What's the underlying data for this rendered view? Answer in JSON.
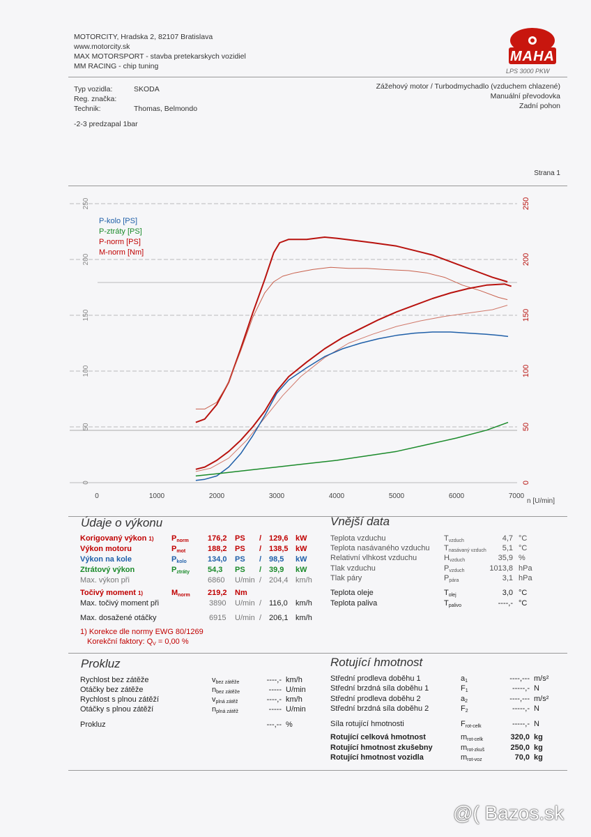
{
  "header": {
    "line1": "MOTORCITY, Hradska 2, 82107 Bratislava",
    "line2": "www.motorcity.sk",
    "line3": "MAX MOTORSPORT - stavba pretekarskych vozidiel",
    "line4": "MM RACING - chip tuning",
    "logo": "MAHA",
    "model": "LPS 3000 PKW"
  },
  "vehicle": {
    "type_label": "Typ vozidla:",
    "type_value": "SKODA",
    "reg_label": "Reg. značka:",
    "tech_label": "Technik:",
    "tech_value": "Thomas, Belmondo",
    "note": "-2-3 predzapal 1bar",
    "engine": "Zážehový motor / Turbodmychadlo (vzduchem chlazené)",
    "gearbox": "Manuální převodovka",
    "drive": "Zadní pohon"
  },
  "page_label": "Strana 1",
  "chart_data": {
    "type": "line",
    "x_label": "n [U/min]",
    "x_ticks": [
      "0",
      "1000",
      "2000",
      "3000",
      "4000",
      "5000",
      "6000",
      "7000"
    ],
    "left_ticks": [
      "0",
      "50",
      "100",
      "150",
      "200",
      "250"
    ],
    "right_ticks": [
      "0",
      "50",
      "100",
      "150",
      "200",
      "250"
    ],
    "xlim": [
      0,
      7000
    ],
    "ylim_left": [
      0,
      250
    ],
    "ylim_right": [
      0,
      250
    ],
    "legend": [
      {
        "name": "P-kolo [PS]",
        "color": "#1f5fa8"
      },
      {
        "name": "P-ztráty [PS]",
        "color": "#1a8a2a"
      },
      {
        "name": "P-norm [PS]",
        "color": "#c00000"
      },
      {
        "name": "M-norm [Nm]",
        "color": "#c00000"
      }
    ],
    "series": [
      {
        "name": "M-norm [Nm]",
        "color": "#b8120e",
        "width": 2,
        "x": [
          1650,
          1800,
          2000,
          2200,
          2400,
          2600,
          2800,
          2950,
          3050,
          3200,
          3500,
          3800,
          4000,
          4300,
          4600,
          5000,
          5300,
          5600,
          6000,
          6300,
          6600,
          6850
        ],
        "y": [
          54,
          57,
          70,
          90,
          120,
          152,
          182,
          206,
          215,
          218,
          218,
          220,
          219,
          217,
          215,
          212,
          208,
          204,
          196,
          190,
          184,
          180
        ]
      },
      {
        "name": "M-norm run 2",
        "color": "#c8604c",
        "width": 1,
        "x": [
          1650,
          1800,
          2000,
          2200,
          2400,
          2600,
          2800,
          2950,
          3100,
          3300,
          3600,
          3900,
          4200,
          4500,
          4800,
          5200,
          5500,
          5800,
          6100,
          6400,
          6700,
          6850
        ],
        "y": [
          66,
          66,
          72,
          90,
          118,
          148,
          170,
          180,
          185,
          188,
          191,
          193,
          192,
          192,
          191,
          190,
          188,
          184,
          177,
          172,
          166,
          164
        ]
      },
      {
        "name": "P-norm [PS]",
        "color": "#b8120e",
        "width": 2,
        "x": [
          1650,
          1800,
          2000,
          2200,
          2400,
          2600,
          2800,
          3000,
          3200,
          3500,
          3800,
          4100,
          4400,
          4700,
          5000,
          5300,
          5600,
          5900,
          6200,
          6500,
          6800,
          6915
        ],
        "y": [
          12,
          14,
          20,
          28,
          38,
          50,
          64,
          82,
          95,
          108,
          120,
          130,
          138,
          146,
          153,
          159,
          165,
          170,
          174,
          177,
          178,
          176
        ]
      },
      {
        "name": "P-norm run 2",
        "color": "#d0786a",
        "width": 1,
        "x": [
          1650,
          1900,
          2200,
          2500,
          2800,
          3100,
          3400,
          3800,
          4200,
          4600,
          5000,
          5400,
          5800,
          6200,
          6600,
          6850
        ],
        "y": [
          10,
          13,
          22,
          38,
          58,
          78,
          95,
          112,
          125,
          133,
          140,
          145,
          149,
          152,
          155,
          159
        ]
      },
      {
        "name": "P-kolo [PS]",
        "color": "#1f5fa8",
        "width": 1.5,
        "x": [
          1650,
          1800,
          2000,
          2200,
          2400,
          2600,
          2800,
          3000,
          3200,
          3500,
          3800,
          4100,
          4400,
          4700,
          5000,
          5300,
          5600,
          5900,
          6200,
          6500,
          6700,
          6860
        ],
        "y": [
          2,
          3,
          6,
          14,
          26,
          42,
          60,
          80,
          92,
          103,
          113,
          120,
          125,
          129,
          132,
          134,
          135,
          135,
          134,
          133,
          132,
          131
        ]
      },
      {
        "name": "P-ztráty [PS]",
        "color": "#1a8a2a",
        "width": 1.5,
        "x": [
          1650,
          2000,
          2500,
          3000,
          3500,
          4000,
          4500,
          5000,
          5500,
          6000,
          6500,
          6860
        ],
        "y": [
          6,
          8,
          11,
          14,
          17,
          20,
          24,
          28,
          34,
          40,
          47,
          54
        ]
      }
    ]
  },
  "vykon": {
    "title": "Údaje o výkonu",
    "rows": [
      {
        "label": "Korigovaný výkon",
        "mark": "1)",
        "sym": "P",
        "sub": "norm",
        "val": "176,2",
        "unit": "PS",
        "sep": "/",
        "val2": "129,6",
        "unit2": "kW",
        "color": "red"
      },
      {
        "label": "Výkon motoru",
        "mark": "",
        "sym": "P",
        "sub": "mot",
        "val": "188,2",
        "unit": "PS",
        "sep": "/",
        "val2": "138,5",
        "unit2": "kW",
        "color": "red"
      },
      {
        "label": "Výkon na kole",
        "mark": "",
        "sym": "P",
        "sub": "kolo",
        "val": "134,0",
        "unit": "PS",
        "sep": "/",
        "val2": "98,5",
        "unit2": "kW",
        "color": "blue"
      },
      {
        "label": "Ztrátový výkon",
        "mark": "",
        "sym": "P",
        "sub": "ztráty",
        "val": "54,3",
        "unit": "PS",
        "sep": "/",
        "val2": "39,9",
        "unit2": "kW",
        "color": "green"
      },
      {
        "label": "Max. výkon při",
        "mark": "",
        "sym": "",
        "sub": "",
        "val": "6860",
        "unit": "U/min",
        "sep": "/",
        "val2": "204,4",
        "unit2": "km/h",
        "color": "grey"
      }
    ],
    "moment": {
      "label": "Točivý moment",
      "mark": "1)",
      "sym": "M",
      "sub": "norm",
      "val": "219,2",
      "unit": "Nm"
    },
    "max_moment": {
      "label": "Max. točivý moment při",
      "val": "3890",
      "unit": "U/min",
      "sep": "/",
      "val2": "116,0",
      "unit2": "km/h"
    },
    "max_speed": {
      "label": "Max. dosažené otáčky",
      "val": "6915",
      "unit": "U/min",
      "sep": "/",
      "val2": "206,1",
      "unit2": "km/h"
    },
    "correction1": "1) Korekce dle normy EWG 80/1269",
    "correction2": "Korekční faktory: Q",
    "correction_sub": "V",
    "correction_val": "= 0,00 %"
  },
  "vnejsi": {
    "title": "Vnější data",
    "rows": [
      {
        "label": "Teplota vzduchu",
        "sym": "T",
        "sub": "vzduch",
        "val": "4,7",
        "unit": "°C"
      },
      {
        "label": "Teplota nasávaného vzduchu",
        "sym": "T",
        "sub": "nasávaný vzduch",
        "val": "5,1",
        "unit": "°C"
      },
      {
        "label": "Relativní vlhkost vzduchu",
        "sym": "H",
        "sub": "vzduch",
        "val": "35,9",
        "unit": "%"
      },
      {
        "label": "Tlak vzduchu",
        "sym": "P",
        "sub": "vzduch",
        "val": "1013,8",
        "unit": "hPa"
      },
      {
        "label": "Tlak páry",
        "sym": "P",
        "sub": "pára",
        "val": "3,1",
        "unit": "hPa"
      },
      {
        "label": "Teplota oleje",
        "sym": "T",
        "sub": "olej",
        "val": "3,0",
        "unit": "°C"
      },
      {
        "label": "Teplota paliva",
        "sym": "T",
        "sub": "palivo",
        "val": "----,-",
        "unit": "°C"
      }
    ]
  },
  "prokluz": {
    "title": "Prokluz",
    "rows": [
      {
        "label": "Rychlost bez zátěže",
        "sym": "v",
        "sub": "bez zátěže",
        "val": "----,-",
        "unit": "km/h"
      },
      {
        "label": "Otáčky bez zátěže",
        "sym": "n",
        "sub": "bez zátěže",
        "val": "-----",
        "unit": "U/min"
      },
      {
        "label": "Rychlost s plnou zátěží",
        "sym": "v",
        "sub": "plná zátěž",
        "val": "----,-",
        "unit": "km/h"
      },
      {
        "label": "Otáčky s plnou zátěží",
        "sym": "n",
        "sub": "plná zátěž",
        "val": "-----",
        "unit": "U/min"
      },
      {
        "label": "Prokluz",
        "sym": "",
        "sub": "",
        "val": "---,--",
        "unit": "%"
      }
    ]
  },
  "rotujici": {
    "title": "Rotující hmotnost",
    "rows": [
      {
        "label": "Střední prodleva doběhu 1",
        "sym": "a",
        "sub": "1",
        "val": "----,---",
        "unit": "m/s²"
      },
      {
        "label": "Střední brzdná síla doběhu 1",
        "sym": "F",
        "sub": "1",
        "val": "-----,-",
        "unit": "N"
      },
      {
        "label": "Střední prodleva doběhu 2",
        "sym": "a",
        "sub": "2",
        "val": "----,---",
        "unit": "m/s²"
      },
      {
        "label": "Střední brzdná síla doběhu 2",
        "sym": "F",
        "sub": "2",
        "val": "-----,-",
        "unit": "N"
      },
      {
        "label": "Síla rotující hmotnosti",
        "sym": "F",
        "sub": "rot-celk",
        "val": "-----,-",
        "unit": "N"
      },
      {
        "label": "Rotující celková hmotnost",
        "sym": "m",
        "sub": "rot-celk",
        "val": "320,0",
        "unit": "kg"
      },
      {
        "label": "Rotující hmotnost zkušebny",
        "sym": "m",
        "sub": "rot-zkuš",
        "val": "250,0",
        "unit": "kg"
      },
      {
        "label": "Rotující hmotnost vozidla",
        "sym": "m",
        "sub": "rot-voz",
        "val": "70,0",
        "unit": "kg"
      }
    ]
  },
  "watermark": "@( Bazos.sk"
}
